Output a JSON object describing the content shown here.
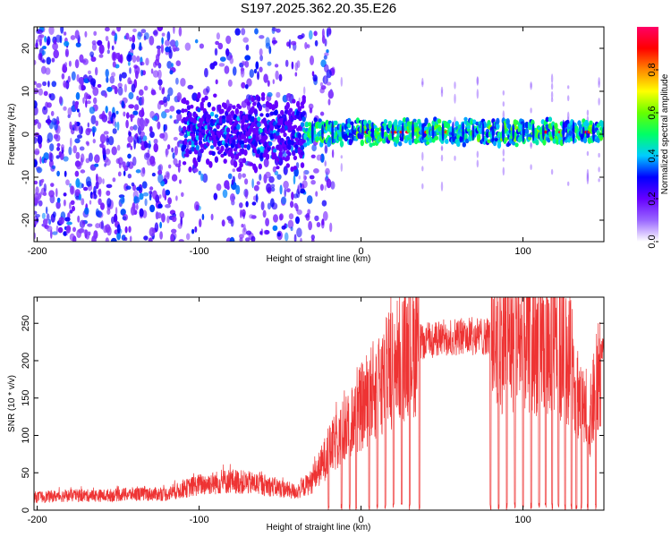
{
  "title": "S197.2025.362.20.35.E26",
  "chart_data": [
    {
      "type": "heatmap",
      "title": "S197.2025.362.20.35.E26",
      "xlabel": "Height of straight line (km)",
      "ylabel": "Frequency (Hz)",
      "xlim": [
        -202,
        150
      ],
      "ylim": [
        -25,
        25
      ],
      "xticks": [
        -200,
        -100,
        0,
        100
      ],
      "yticks": [
        -20,
        -10,
        0,
        10,
        20
      ],
      "colorbar": {
        "label": "Normalized spectral amplitude",
        "range": [
          0,
          1
        ],
        "ticks": [
          0.0,
          0.2,
          0.4,
          0.6,
          0.8
        ],
        "colors": [
          "#ffffff",
          "#9966ff",
          "#6600ff",
          "#0000ff",
          "#00ccff",
          "#00ff66",
          "#66ff00",
          "#ffff00",
          "#ff8800",
          "#ff0000",
          "#ff0066"
        ]
      },
      "features": [
        {
          "name": "scattered noise",
          "x_range": [
            -200,
            -20
          ],
          "freq_range": [
            -25,
            25
          ],
          "amplitude": 0.05
        },
        {
          "name": "signal band",
          "x_range": [
            -110,
            150
          ],
          "center_freq_hz": 0.5,
          "amplitude_max": 1.0
        }
      ]
    },
    {
      "type": "line",
      "xlabel": "Height of straight line (km)",
      "ylabel": "SNR (10 * v/v)",
      "xlim": [
        -202,
        150
      ],
      "ylim": [
        0,
        285
      ],
      "xticks": [
        -200,
        -100,
        0,
        100
      ],
      "yticks": [
        0,
        50,
        100,
        150,
        200,
        250
      ],
      "series": [
        {
          "name": "SNR",
          "color": "#ee3333",
          "x": [
            -200,
            -180,
            -160,
            -140,
            -120,
            -100,
            -80,
            -60,
            -40,
            -30,
            -20,
            -10,
            0,
            10,
            20,
            30,
            40,
            60,
            80,
            100,
            120,
            130,
            140,
            150
          ],
          "values": [
            18,
            20,
            20,
            22,
            22,
            35,
            40,
            35,
            25,
            40,
            80,
            110,
            140,
            170,
            200,
            220,
            230,
            235,
            235,
            230,
            225,
            200,
            110,
            220
          ]
        }
      ]
    }
  ]
}
